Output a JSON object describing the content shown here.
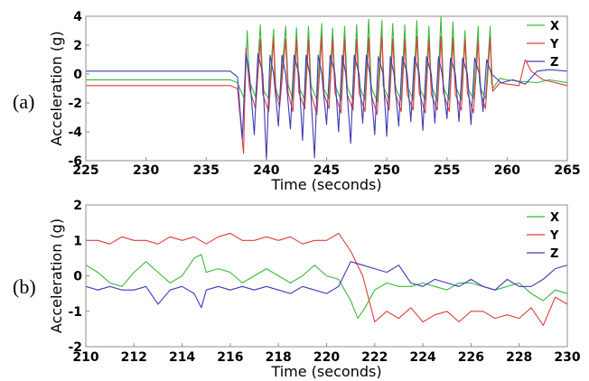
{
  "chart_data": [
    {
      "type": "line",
      "panel_label": "(a)",
      "title": "",
      "xlabel": "Time (seconds)",
      "ylabel": "Acceleration (g)",
      "xlim": [
        225,
        265
      ],
      "ylim": [
        -6,
        4
      ],
      "xticks": [
        225,
        230,
        235,
        240,
        245,
        250,
        255,
        260,
        265
      ],
      "yticks": [
        4,
        2,
        0,
        -2,
        -4,
        -6
      ],
      "grid": false,
      "legend_position": "top-right",
      "series": [
        {
          "name": "X",
          "color": "#3cb83c",
          "x": [
            225,
            237,
            237.6,
            238.2,
            238.4,
            238.6,
            239.1,
            239.5,
            239.7,
            239.8,
            240.2,
            240.6,
            240.7,
            240.8,
            241.1,
            241.6,
            241.8,
            242.2,
            242.5,
            242.7,
            242.8,
            243.2,
            243.5,
            243.7,
            243.8,
            244.2,
            244.6,
            244.7,
            244.8,
            245.2,
            245.5,
            245.7,
            245.8,
            246.2,
            246.5,
            246.7,
            246.8,
            247.2,
            247.5,
            247.7,
            247.8,
            248.2,
            248.5,
            248.7,
            248.8,
            249.2,
            249.6,
            249.7,
            249.8,
            250.2,
            250.5,
            250.7,
            250.8,
            251.2,
            251.5,
            251.7,
            251.8,
            252.2,
            252.5,
            252.7,
            252.8,
            253.2,
            253.5,
            253.7,
            253.8,
            254.2,
            254.5,
            254.7,
            254.8,
            255.2,
            255.5,
            255.7,
            255.8,
            256.2,
            256.5,
            256.7,
            256.8,
            257.2,
            257.6,
            257.7,
            257.8,
            258.2,
            258.6,
            258.7,
            258.8,
            259.4,
            260,
            261,
            262.5,
            263.5,
            265
          ],
          "y": [
            -0.4,
            -0.4,
            -0.6,
            -1.8,
            3.0,
            -0.5,
            -1.6,
            3.4,
            -0.6,
            -1.2,
            -1.7,
            3.1,
            -0.6,
            -1.0,
            -1.8,
            3.3,
            -0.7,
            -1.8,
            3.2,
            -0.6,
            -1.1,
            -1.8,
            3.3,
            -0.7,
            -1.0,
            -1.8,
            3.5,
            -0.7,
            -1.1,
            -1.7,
            3.2,
            -0.6,
            -1.0,
            -1.8,
            3.3,
            -0.7,
            -1.1,
            -1.8,
            3.4,
            -0.7,
            -1.0,
            -1.8,
            3.8,
            -0.7,
            -1.1,
            -1.9,
            3.7,
            -0.8,
            -1.0,
            -1.8,
            3.5,
            -0.7,
            -1.1,
            -1.8,
            3.4,
            -0.7,
            -1.0,
            -1.8,
            3.7,
            -0.7,
            -1.1,
            -1.8,
            3.3,
            -0.7,
            -1.0,
            -1.9,
            4.0,
            -0.8,
            -1.1,
            -1.8,
            3.6,
            -0.7,
            -1.0,
            -1.8,
            3.0,
            -0.6,
            -1.1,
            -1.7,
            3.3,
            -0.6,
            -1.0,
            -1.7,
            3.3,
            -0.6,
            -1.0,
            -0.3,
            -0.4,
            -0.5,
            -0.6,
            -0.4,
            -0.6
          ]
        },
        {
          "name": "Y",
          "color": "#e03c3c",
          "x": [
            225,
            237,
            237.6,
            238.1,
            238.3,
            238.6,
            239.1,
            239.5,
            239.7,
            240.2,
            240.6,
            240.8,
            241.1,
            241.6,
            241.8,
            242.2,
            242.5,
            242.7,
            243.2,
            243.5,
            243.7,
            244.2,
            244.6,
            244.8,
            245.2,
            245.5,
            245.7,
            246.2,
            246.5,
            246.7,
            247.2,
            247.5,
            247.7,
            248.2,
            248.5,
            248.7,
            249.2,
            249.6,
            249.8,
            250.2,
            250.5,
            250.7,
            251.2,
            251.5,
            251.7,
            252.2,
            252.5,
            252.7,
            253.2,
            253.5,
            253.7,
            254.2,
            254.5,
            254.7,
            255.2,
            255.5,
            255.7,
            256.2,
            256.5,
            256.7,
            257.2,
            257.6,
            257.8,
            258.2,
            258.6,
            258.8,
            259.4,
            260,
            261,
            261.5,
            262,
            263,
            265
          ],
          "y": [
            -0.8,
            -0.8,
            -1.0,
            -5.5,
            1.8,
            -1.0,
            -2.4,
            2.4,
            -1.4,
            -2.6,
            2.5,
            -1.3,
            -2.3,
            2.4,
            -1.3,
            -2.6,
            2.4,
            -1.3,
            -2.4,
            2.4,
            -1.3,
            -2.8,
            2.6,
            -1.4,
            -2.4,
            2.4,
            -1.3,
            -2.7,
            2.5,
            -1.4,
            -2.5,
            2.4,
            -1.3,
            -2.6,
            2.5,
            -1.4,
            -2.8,
            2.6,
            -1.3,
            -2.5,
            2.4,
            -1.3,
            -2.6,
            2.4,
            -1.4,
            -2.5,
            2.6,
            -1.3,
            -2.7,
            2.4,
            -1.4,
            -2.5,
            2.6,
            -1.3,
            -2.6,
            2.5,
            -1.4,
            -2.5,
            2.4,
            -1.3,
            -2.7,
            2.3,
            -1.3,
            -2.4,
            2.5,
            -1.2,
            -0.6,
            -0.7,
            -0.8,
            1.0,
            0.2,
            -0.4,
            -0.8
          ]
        },
        {
          "name": "Z",
          "color": "#3c3cb4",
          "x": [
            225,
            237,
            237.6,
            238.0,
            238.3,
            238.6,
            239.0,
            239.3,
            239.7,
            240.0,
            240.3,
            240.6,
            241.0,
            241.3,
            241.6,
            242.0,
            242.3,
            242.7,
            243.0,
            243.3,
            243.6,
            244.0,
            244.3,
            244.6,
            245.0,
            245.3,
            245.7,
            246.0,
            246.3,
            246.6,
            247.0,
            247.3,
            247.7,
            248.0,
            248.3,
            248.6,
            249.0,
            249.3,
            249.7,
            250.0,
            250.3,
            250.6,
            251.0,
            251.3,
            251.7,
            252.0,
            252.3,
            252.7,
            253.0,
            253.3,
            253.7,
            254.0,
            254.3,
            254.6,
            255.0,
            255.3,
            255.7,
            256.0,
            256.3,
            256.7,
            257.0,
            257.3,
            257.7,
            258.0,
            258.3,
            258.7,
            259.5,
            260.5,
            261.5,
            262.5,
            263.5,
            265
          ],
          "y": [
            0.2,
            0.2,
            -0.2,
            -4.5,
            1.4,
            0.0,
            -4.2,
            1.4,
            0.0,
            -6.0,
            1.3,
            0.0,
            -3.6,
            1.3,
            0.0,
            -3.8,
            1.3,
            0.0,
            -4.6,
            1.3,
            0.0,
            -5.8,
            1.3,
            0.0,
            -3.5,
            1.3,
            0.0,
            -4.0,
            1.3,
            0.0,
            -4.8,
            1.3,
            0.0,
            -3.4,
            1.3,
            0.0,
            -4.2,
            1.2,
            0.0,
            -4.3,
            1.2,
            0.0,
            -3.6,
            1.2,
            0.0,
            -3.3,
            1.2,
            0.0,
            -3.9,
            1.2,
            0.0,
            -3.4,
            1.2,
            0.0,
            -3.1,
            1.1,
            0.0,
            -3.3,
            1.1,
            0.0,
            -3.5,
            1.1,
            0.0,
            -2.6,
            1.0,
            0.0,
            -0.6,
            -0.4,
            -0.7,
            0.2,
            0.3,
            0.2
          ]
        }
      ]
    },
    {
      "type": "line",
      "panel_label": "(b)",
      "title": "",
      "xlabel": "Time (seconds)",
      "ylabel": "Acceleration (g)",
      "xlim": [
        210,
        230
      ],
      "ylim": [
        -2,
        2
      ],
      "xticks": [
        210,
        212,
        214,
        216,
        218,
        220,
        222,
        224,
        226,
        228,
        230
      ],
      "yticks": [
        2,
        1,
        0,
        -1,
        -2
      ],
      "grid": false,
      "legend_position": "top-right",
      "series": [
        {
          "name": "X",
          "color": "#3cb83c",
          "x": [
            210,
            210.5,
            211,
            211.5,
            212,
            212.5,
            213,
            213.5,
            214,
            214.5,
            214.8,
            215,
            215.5,
            216,
            216.5,
            217,
            217.5,
            218,
            218.5,
            219,
            219.5,
            220,
            220.5,
            221,
            221.3,
            221.6,
            222,
            222.5,
            223,
            223.5,
            224,
            224.5,
            225,
            225.5,
            226,
            226.5,
            227,
            227.5,
            228,
            228.5,
            229,
            229.5,
            230
          ],
          "y": [
            0.3,
            0.1,
            -0.2,
            -0.3,
            0.1,
            0.4,
            0.1,
            -0.2,
            0.0,
            0.5,
            0.6,
            0.1,
            0.2,
            0.1,
            -0.2,
            0.0,
            0.2,
            0.0,
            -0.2,
            0.0,
            0.3,
            0.0,
            -0.1,
            -0.7,
            -1.2,
            -0.9,
            -0.4,
            -0.2,
            -0.3,
            -0.3,
            -0.2,
            -0.3,
            -0.4,
            -0.2,
            -0.2,
            -0.3,
            -0.4,
            -0.3,
            -0.2,
            -0.5,
            -0.7,
            -0.4,
            -0.5
          ]
        },
        {
          "name": "Y",
          "color": "#e03c3c",
          "x": [
            210,
            210.5,
            211,
            211.5,
            212,
            212.5,
            213,
            213.5,
            214,
            214.5,
            215,
            215.5,
            216,
            216.5,
            217,
            217.5,
            218,
            218.5,
            219,
            219.5,
            220,
            220.5,
            221,
            221.5,
            222,
            222.5,
            223,
            223.5,
            224,
            224.5,
            225,
            225.5,
            226,
            226.5,
            227,
            227.5,
            228,
            228.5,
            229,
            229.5,
            230
          ],
          "y": [
            1.0,
            1.0,
            0.9,
            1.1,
            1.0,
            1.0,
            0.9,
            1.1,
            1.0,
            1.1,
            0.9,
            1.1,
            1.2,
            1.0,
            1.0,
            1.1,
            1.0,
            1.1,
            0.9,
            1.0,
            1.0,
            1.2,
            0.7,
            0.0,
            -1.3,
            -1.0,
            -1.2,
            -0.9,
            -1.3,
            -1.1,
            -1.0,
            -1.3,
            -1.0,
            -1.0,
            -1.2,
            -1.1,
            -1.2,
            -0.9,
            -1.4,
            -0.6,
            -0.8
          ]
        },
        {
          "name": "Z",
          "color": "#3c3cb4",
          "x": [
            210,
            210.5,
            211,
            211.5,
            212,
            212.5,
            213,
            213.5,
            214,
            214.5,
            214.8,
            215,
            215.5,
            216,
            216.5,
            217,
            217.5,
            218,
            218.5,
            219,
            219.5,
            220,
            220.5,
            221,
            221.5,
            222,
            222.5,
            223,
            223.5,
            224,
            224.5,
            225,
            225.5,
            226,
            226.5,
            227,
            227.5,
            228,
            228.5,
            229,
            229.5,
            230
          ],
          "y": [
            -0.3,
            -0.4,
            -0.3,
            -0.4,
            -0.4,
            -0.3,
            -0.8,
            -0.4,
            -0.3,
            -0.5,
            -0.9,
            -0.4,
            -0.3,
            -0.4,
            -0.3,
            -0.4,
            -0.3,
            -0.4,
            -0.5,
            -0.3,
            -0.4,
            -0.5,
            -0.3,
            0.4,
            0.3,
            0.2,
            0.1,
            0.3,
            -0.2,
            -0.3,
            -0.1,
            -0.2,
            -0.3,
            -0.1,
            -0.3,
            -0.4,
            -0.1,
            -0.3,
            -0.3,
            -0.1,
            0.2,
            0.3
          ]
        }
      ]
    }
  ]
}
